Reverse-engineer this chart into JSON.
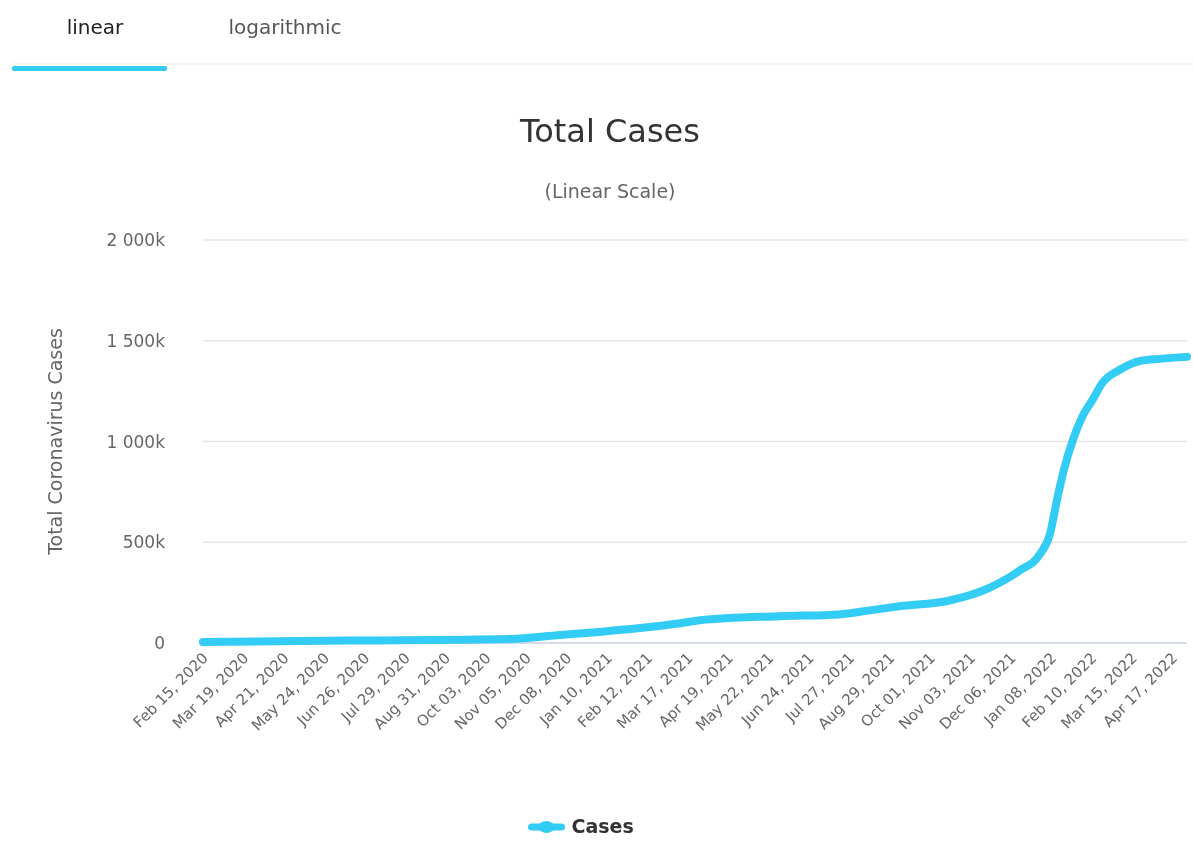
{
  "chart_data": {
    "type": "line",
    "title": "Total Cases",
    "subtitle": "(Linear Scale)",
    "ylabel": "Total Coronavirus Cases",
    "annotations": [
      "linear",
      "logarithmic"
    ],
    "x": [
      "2020-02-15",
      "2020-06-14",
      "2020-10-23",
      "2020-12-03",
      "2021-01-04",
      "2021-02-06",
      "2021-03-11",
      "2021-03-27",
      "2021-05-31",
      "2021-07-19",
      "2021-08-13",
      "2021-09-06",
      "2021-10-17",
      "2021-11-19",
      "2021-12-13",
      "2021-12-30",
      "2022-01-07",
      "2022-01-13",
      "2022-01-18",
      "2022-01-26",
      "2022-02-03",
      "2022-02-11",
      "2022-02-19",
      "2022-03-05",
      "2022-03-22",
      "2022-04-07",
      "2022-04-29"
    ],
    "series": [
      {
        "name": "Cases",
        "color": "#33ccf5",
        "values": [
          5000,
          12000,
          20000,
          40000,
          55000,
          74000,
          98000,
          113000,
          133000,
          142000,
          162000,
          182000,
          211000,
          275000,
          359000,
          442000,
          540000,
          717000,
          850000,
          1012000,
          1130000,
          1209000,
          1292000,
          1356000,
          1400000,
          1410000,
          1420000
        ]
      }
    ],
    "xlim": [
      "2020-02-15",
      "2022-04-29"
    ],
    "xticks": [
      {
        "value": "2020-02-15",
        "label": "Feb 15, 2020"
      },
      {
        "value": "2020-03-19",
        "label": "Mar 19, 2020"
      },
      {
        "value": "2020-04-21",
        "label": "Apr 21, 2020"
      },
      {
        "value": "2020-05-24",
        "label": "May 24, 2020"
      },
      {
        "value": "2020-06-26",
        "label": "Jun 26, 2020"
      },
      {
        "value": "2020-07-29",
        "label": "Jul 29, 2020"
      },
      {
        "value": "2020-08-31",
        "label": "Aug 31, 2020"
      },
      {
        "value": "2020-10-03",
        "label": "Oct 03, 2020"
      },
      {
        "value": "2020-11-05",
        "label": "Nov 05, 2020"
      },
      {
        "value": "2020-12-08",
        "label": "Dec 08, 2020"
      },
      {
        "value": "2021-01-10",
        "label": "Jan 10, 2021"
      },
      {
        "value": "2021-02-12",
        "label": "Feb 12, 2021"
      },
      {
        "value": "2021-03-17",
        "label": "Mar 17, 2021"
      },
      {
        "value": "2021-04-19",
        "label": "Apr 19, 2021"
      },
      {
        "value": "2021-05-22",
        "label": "May 22, 2021"
      },
      {
        "value": "2021-06-24",
        "label": "Jun 24, 2021"
      },
      {
        "value": "2021-07-27",
        "label": "Jul 27, 2021"
      },
      {
        "value": "2021-08-29",
        "label": "Aug 29, 2021"
      },
      {
        "value": "2021-10-01",
        "label": "Oct 01, 2021"
      },
      {
        "value": "2021-11-03",
        "label": "Nov 03, 2021"
      },
      {
        "value": "2021-12-06",
        "label": "Dec 06, 2021"
      },
      {
        "value": "2022-01-08",
        "label": "Jan 08, 2022"
      },
      {
        "value": "2022-02-10",
        "label": "Feb 10, 2022"
      },
      {
        "value": "2022-03-15",
        "label": "Mar 15, 2022"
      },
      {
        "value": "2022-04-17",
        "label": "Apr 17, 2022"
      }
    ],
    "ylim": [
      0,
      2000000
    ],
    "yticks": [
      {
        "value": 0,
        "label": "0"
      },
      {
        "value": 500000,
        "label": "500k"
      },
      {
        "value": 1000000,
        "label": "1 000k"
      },
      {
        "value": 1500000,
        "label": "1 500k"
      },
      {
        "value": 2000000,
        "label": "2 000k"
      }
    ],
    "grid": "y",
    "legend": "bottom",
    "marker": "none",
    "line_style": "solid"
  }
}
